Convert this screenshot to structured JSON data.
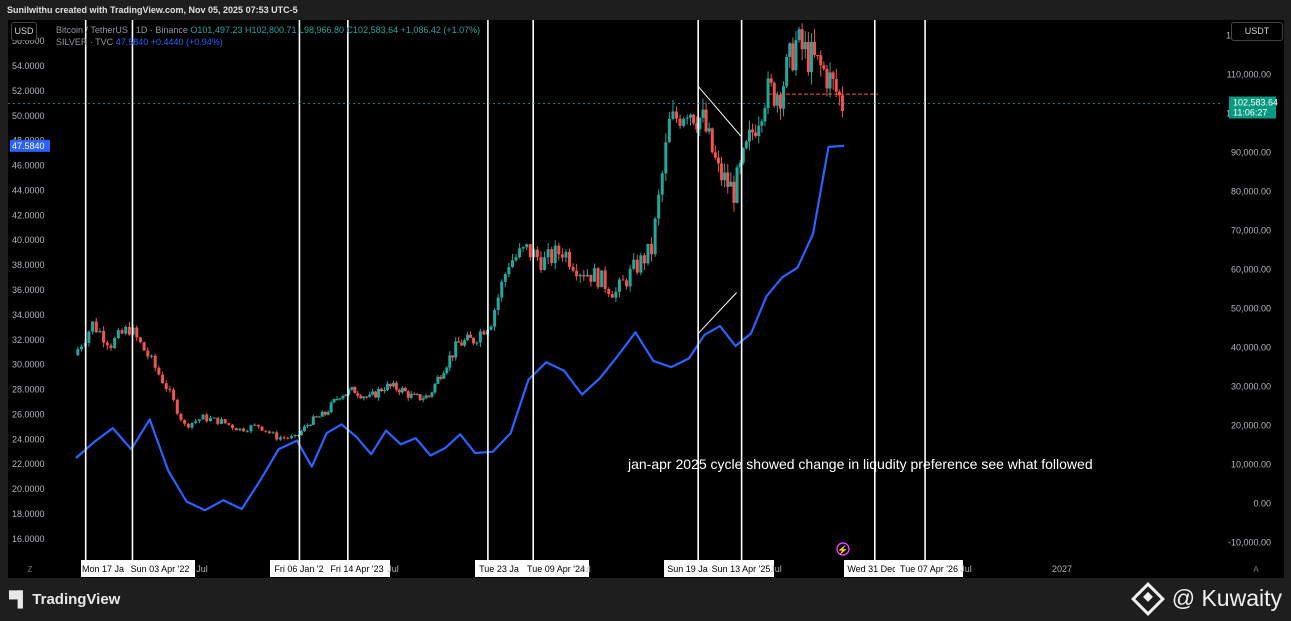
{
  "header": {
    "credit": "Sunilwithu created with TradingView.com, Nov 05, 2025 07:53 UTC-5"
  },
  "toolbar": {
    "left_currency": "USD",
    "right_currency": "USDT"
  },
  "legend": {
    "btc_name": "Bitcoin / TetherUS · 1D · Binance",
    "btc_ohlc": "O101,497.23 H102,800.71 L98,966.80 C102,583.64 +1,086.42 (+1.07%)",
    "silver_name": "SILVER · TVC",
    "silver_values": "47.5840 +0.4440 (+0.94%)"
  },
  "price_labels": {
    "btc_last": "102,583.64",
    "btc_countdown": "11:06:27",
    "silver_last": "47.5840"
  },
  "annotation": "jan-apr 2025 cycle showed change in liqudity preference see what followed",
  "footer": {
    "brand": "TradingView",
    "watermark": "@ Kuwaity"
  },
  "colors": {
    "background": "#000000",
    "candle_up": "#26a69a",
    "candle_down": "#ef5350",
    "silver_line": "#2962ff",
    "vertical_marker": "#ffffff",
    "btc_label_bg": "#089981"
  },
  "chart_data": {
    "type": "line",
    "title": "",
    "time_axis": {
      "ticks": [
        "Mon 17 Ja",
        "Sun 03 Apr '22",
        "Jul",
        "Fri 06 Jan '2",
        "Fri 14 Apr '23",
        "Jul",
        "Tue 23 Ja",
        "Tue 09 Apr '24",
        "Jul",
        "Sun 19 Jar",
        "Sun 13 Apr '25",
        "Jul",
        "Wed 31 Dec",
        "Tue 07 Apr '26",
        "Jul",
        "2027"
      ]
    },
    "left_axis": {
      "label": "USD",
      "ticks": [
        "56.0000",
        "54.0000",
        "52.0000",
        "50.0000",
        "48.0000",
        "46.0000",
        "44.0000",
        "42.0000",
        "40.0000",
        "38.0000",
        "36.0000",
        "34.0000",
        "32.0000",
        "30.0000",
        "28.0000",
        "26.0000",
        "24.0000",
        "22.0000",
        "20.0000",
        "18.0000",
        "16.0000"
      ],
      "range": [
        14.3,
        57.7
      ]
    },
    "right_axis": {
      "label": "USDT",
      "ticks": [
        "120,000.00",
        "110,000.00",
        "100,000.00",
        "90,000.00",
        "80,000.00",
        "70,000.00",
        "60,000.00",
        "50,000.00",
        "40,000.00",
        "30,000.00",
        "20,000.00",
        "10,000.00",
        "0.00",
        "-10,000.00"
      ],
      "range": [
        -14500,
        124000
      ]
    },
    "vertical_markers": [
      "Mon 17 Jan '22",
      "Sun 03 Apr '22",
      "Fri 06 Jan '23",
      "Fri 14 Apr '23",
      "Tue 23 Jan '24",
      "Tue 09 Apr '24",
      "Sun 19 Jan '25",
      "Sun 13 Apr '25",
      "Wed 31 Dec '25",
      "Tue 07 Apr '26"
    ],
    "series": [
      {
        "name": "Bitcoin / TetherUS",
        "style": "candles",
        "axis": "right",
        "x": [
          "2022-01",
          "2022-02",
          "2022-03",
          "2022-04",
          "2022-05",
          "2022-06",
          "2022-07",
          "2022-08",
          "2022-09",
          "2022-10",
          "2022-11",
          "2022-12",
          "2023-01",
          "2023-02",
          "2023-03",
          "2023-04",
          "2023-05",
          "2023-06",
          "2023-07",
          "2023-08",
          "2023-09",
          "2023-10",
          "2023-11",
          "2023-12",
          "2024-01",
          "2024-02",
          "2024-03",
          "2024-04",
          "2024-05",
          "2024-06",
          "2024-07",
          "2024-08",
          "2024-09",
          "2024-10",
          "2024-11",
          "2024-12",
          "2025-01",
          "2025-02",
          "2025-03",
          "2025-04",
          "2025-05",
          "2025-06",
          "2025-07",
          "2025-08",
          "2025-09",
          "2025-10",
          "2025-11"
        ],
        "values": [
          38000,
          46000,
          41000,
          45000,
          38000,
          30000,
          20000,
          22000,
          21000,
          19000,
          20000,
          17000,
          16800,
          21000,
          23000,
          28000,
          29000,
          27000,
          30000,
          29500,
          27000,
          27500,
          35000,
          41000,
          42000,
          47000,
          62000,
          65000,
          62000,
          65000,
          60000,
          58000,
          54000,
          60000,
          65000,
          97000,
          102000,
          98000,
          85000,
          80000,
          93000,
          105000,
          106000,
          118000,
          114000,
          110000,
          102583.64
        ]
      },
      {
        "name": "SILVER",
        "style": "line",
        "axis": "left",
        "x": [
          "2022-01",
          "2022-02",
          "2022-03",
          "2022-04",
          "2022-05",
          "2022-06",
          "2022-07",
          "2022-08",
          "2022-09",
          "2022-10",
          "2022-11",
          "2022-12",
          "2023-01",
          "2023-02",
          "2023-03",
          "2023-04",
          "2023-05",
          "2023-06",
          "2023-07",
          "2023-08",
          "2023-09",
          "2023-10",
          "2023-11",
          "2023-12",
          "2024-01",
          "2024-02",
          "2024-03",
          "2024-04",
          "2024-05",
          "2024-06",
          "2024-07",
          "2024-08",
          "2024-09",
          "2024-10",
          "2024-11",
          "2024-12",
          "2025-01",
          "2025-02",
          "2025-03",
          "2025-04",
          "2025-05",
          "2025-06",
          "2025-07",
          "2025-08",
          "2025-09",
          "2025-10",
          "2025-11"
        ],
        "values": [
          22.5,
          23.8,
          24.9,
          23.2,
          25.6,
          21.5,
          19.0,
          18.3,
          19.1,
          18.4,
          20.7,
          23.2,
          23.9,
          21.8,
          24.5,
          25.2,
          24.2,
          22.8,
          24.7,
          23.6,
          24.1,
          22.7,
          23.3,
          24.4,
          22.9,
          23.0,
          24.5,
          28.8,
          30.2,
          29.5,
          27.6,
          28.9,
          30.7,
          32.6,
          30.3,
          29.8,
          30.5,
          32.4,
          33.1,
          31.5,
          32.5,
          35.5,
          37.0,
          37.8,
          40.5,
          47.5,
          47.584
        ]
      }
    ]
  }
}
